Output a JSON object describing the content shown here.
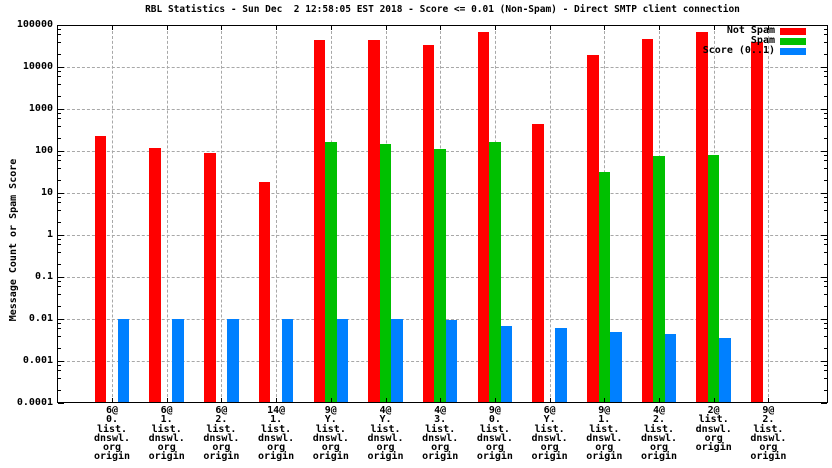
{
  "title": "RBL Statistics - Sun Dec  2 12:58:05 EST 2018 - Score <= 0.01 (Non-Spam) - Direct SMTP client connection",
  "chart_data": {
    "type": "bar",
    "y_scale": "log",
    "ylim": [
      0.0001,
      100000
    ],
    "grid": true,
    "legend_position": "top-right-inside",
    "title": "RBL Statistics - Sun Dec  2 12:58:05 EST 2018 - Score <= 0.01 (Non-Spam) - Direct SMTP client connection",
    "xlabel": "",
    "ylabel": "Message Count or Spam Score",
    "y_ticks": [
      "100000",
      "10000",
      "1000",
      "100",
      "10",
      "1",
      "0.1",
      "0.01",
      "0.001",
      "0.0001"
    ],
    "categories": [
      [
        "6@",
        "0.",
        "list.",
        "dnswl.",
        "org",
        "origin"
      ],
      [
        "6@",
        "1.",
        "list.",
        "dnswl.",
        "org",
        "origin"
      ],
      [
        "6@",
        "2.",
        "list.",
        "dnswl.",
        "org",
        "origin"
      ],
      [
        "14@",
        "1.",
        "list.",
        "dnswl.",
        "org",
        "origin"
      ],
      [
        "9@",
        "Y.",
        "list.",
        "dnswl.",
        "org",
        "origin"
      ],
      [
        "4@",
        "Y.",
        "list.",
        "dnswl.",
        "org",
        "origin"
      ],
      [
        "4@",
        "3.",
        "list.",
        "dnswl.",
        "org",
        "origin"
      ],
      [
        "9@",
        "0.",
        "list.",
        "dnswl.",
        "org",
        "origin"
      ],
      [
        "6@",
        "Y.",
        "list.",
        "dnswl.",
        "org",
        "origin"
      ],
      [
        "9@",
        "1.",
        "list.",
        "dnswl.",
        "org",
        "origin"
      ],
      [
        "4@",
        "2.",
        "list.",
        "dnswl.",
        "org",
        "origin"
      ],
      [
        "2@",
        "list.",
        "dnswl.",
        "org",
        "origin"
      ],
      [
        "9@",
        "2.",
        "list.",
        "dnswl.",
        "org",
        "origin"
      ]
    ],
    "series": [
      {
        "name": "Not Spam",
        "color": "#ff0000",
        "values": [
          230,
          120,
          88,
          18,
          45000,
          45000,
          34000,
          67000,
          450,
          19000,
          46000,
          68000,
          40000
        ]
      },
      {
        "name": "Spam",
        "color": "#00c000",
        "values": [
          null,
          null,
          null,
          null,
          160,
          150,
          110,
          160,
          null,
          32,
          75,
          80,
          null
        ]
      },
      {
        "name": "Score (0..1)",
        "color": "#0080ff",
        "values": [
          0.01,
          0.01,
          0.01,
          0.01,
          0.01,
          0.01,
          0.0095,
          0.007,
          0.006,
          0.005,
          0.0045,
          0.0035,
          null
        ]
      }
    ]
  }
}
